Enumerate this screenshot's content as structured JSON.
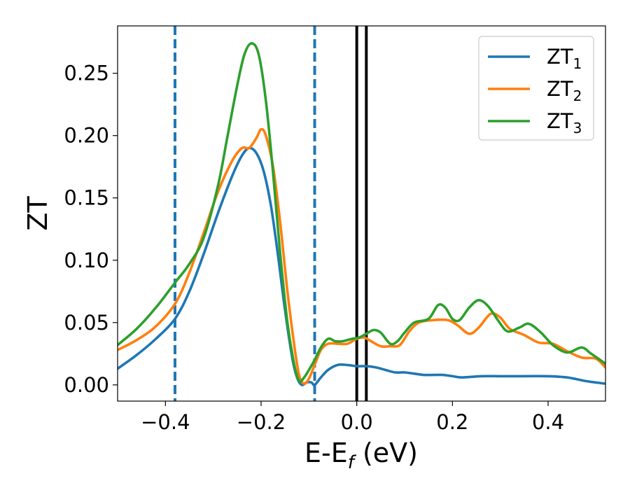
{
  "chart_data": {
    "type": "line",
    "title": "",
    "xlabel": {
      "main": "E-E",
      "sub": "f",
      "suffix": " (eV)"
    },
    "ylabel": "ZT",
    "xlim": [
      -0.5,
      0.52
    ],
    "ylim": [
      -0.013,
      0.288
    ],
    "xticks": [
      -0.4,
      -0.2,
      0.0,
      0.2,
      0.4
    ],
    "xtick_labels": [
      "−0.4",
      "−0.2",
      "0.0",
      "0.2",
      "0.4"
    ],
    "yticks": [
      0.0,
      0.05,
      0.1,
      0.15,
      0.2,
      0.25
    ],
    "ytick_labels": [
      "0.00",
      "0.05",
      "0.10",
      "0.15",
      "0.20",
      "0.25"
    ],
    "grid": false,
    "legend_position": "top-right",
    "vlines": [
      {
        "x": -0.38,
        "style": "dashed",
        "color": "#1f77b4"
      },
      {
        "x": -0.088,
        "style": "dashed",
        "color": "#1f77b4"
      },
      {
        "x": 0.0,
        "style": "solid",
        "color": "#000000"
      },
      {
        "x": 0.02,
        "style": "solid",
        "color": "#000000"
      }
    ],
    "series": [
      {
        "name": "ZT",
        "sub": "1",
        "color": "#1f77b4",
        "points": [
          [
            -0.5,
            0.013
          ],
          [
            -0.46,
            0.024
          ],
          [
            -0.42,
            0.037
          ],
          [
            -0.38,
            0.053
          ],
          [
            -0.35,
            0.075
          ],
          [
            -0.32,
            0.105
          ],
          [
            -0.29,
            0.138
          ],
          [
            -0.26,
            0.168
          ],
          [
            -0.24,
            0.184
          ],
          [
            -0.225,
            0.19
          ],
          [
            -0.21,
            0.186
          ],
          [
            -0.195,
            0.172
          ],
          [
            -0.18,
            0.145
          ],
          [
            -0.165,
            0.105
          ],
          [
            -0.15,
            0.06
          ],
          [
            -0.135,
            0.022
          ],
          [
            -0.125,
            0.006
          ],
          [
            -0.115,
            0.0
          ],
          [
            -0.105,
            0.002
          ],
          [
            -0.095,
            0.002
          ],
          [
            -0.088,
            0.0
          ],
          [
            -0.075,
            0.006
          ],
          [
            -0.06,
            0.012
          ],
          [
            -0.04,
            0.016
          ],
          [
            -0.02,
            0.016
          ],
          [
            0.0,
            0.015
          ],
          [
            0.02,
            0.015
          ],
          [
            0.04,
            0.014
          ],
          [
            0.06,
            0.012
          ],
          [
            0.08,
            0.01
          ],
          [
            0.1,
            0.01
          ],
          [
            0.12,
            0.009
          ],
          [
            0.14,
            0.008
          ],
          [
            0.16,
            0.008
          ],
          [
            0.18,
            0.008
          ],
          [
            0.2,
            0.007
          ],
          [
            0.22,
            0.006
          ],
          [
            0.26,
            0.007
          ],
          [
            0.3,
            0.007
          ],
          [
            0.35,
            0.007
          ],
          [
            0.4,
            0.007
          ],
          [
            0.44,
            0.006
          ],
          [
            0.48,
            0.003
          ],
          [
            0.52,
            0.001
          ]
        ]
      },
      {
        "name": "ZT",
        "sub": "2",
        "color": "#ff7f0e",
        "points": [
          [
            -0.5,
            0.028
          ],
          [
            -0.46,
            0.036
          ],
          [
            -0.42,
            0.047
          ],
          [
            -0.38,
            0.065
          ],
          [
            -0.35,
            0.09
          ],
          [
            -0.32,
            0.122
          ],
          [
            -0.29,
            0.155
          ],
          [
            -0.26,
            0.18
          ],
          [
            -0.24,
            0.19
          ],
          [
            -0.225,
            0.19
          ],
          [
            -0.21,
            0.198
          ],
          [
            -0.2,
            0.205
          ],
          [
            -0.19,
            0.2
          ],
          [
            -0.175,
            0.175
          ],
          [
            -0.16,
            0.13
          ],
          [
            -0.145,
            0.075
          ],
          [
            -0.13,
            0.03
          ],
          [
            -0.12,
            0.007
          ],
          [
            -0.11,
            0.001
          ],
          [
            -0.1,
            0.005
          ],
          [
            -0.088,
            0.016
          ],
          [
            -0.075,
            0.028
          ],
          [
            -0.06,
            0.033
          ],
          [
            -0.04,
            0.033
          ],
          [
            -0.02,
            0.033
          ],
          [
            0.0,
            0.037
          ],
          [
            0.015,
            0.038
          ],
          [
            0.03,
            0.035
          ],
          [
            0.05,
            0.031
          ],
          [
            0.07,
            0.031
          ],
          [
            0.09,
            0.032
          ],
          [
            0.11,
            0.043
          ],
          [
            0.13,
            0.05
          ],
          [
            0.16,
            0.052
          ],
          [
            0.19,
            0.052
          ],
          [
            0.21,
            0.048
          ],
          [
            0.235,
            0.041
          ],
          [
            0.255,
            0.046
          ],
          [
            0.28,
            0.057
          ],
          [
            0.3,
            0.054
          ],
          [
            0.32,
            0.045
          ],
          [
            0.35,
            0.04
          ],
          [
            0.38,
            0.034
          ],
          [
            0.41,
            0.033
          ],
          [
            0.44,
            0.027
          ],
          [
            0.47,
            0.022
          ],
          [
            0.5,
            0.021
          ],
          [
            0.52,
            0.014
          ]
        ]
      },
      {
        "name": "ZT",
        "sub": "3",
        "color": "#2ca02c",
        "points": [
          [
            -0.5,
            0.032
          ],
          [
            -0.46,
            0.045
          ],
          [
            -0.42,
            0.062
          ],
          [
            -0.38,
            0.082
          ],
          [
            -0.35,
            0.097
          ],
          [
            -0.32,
            0.118
          ],
          [
            -0.29,
            0.16
          ],
          [
            -0.27,
            0.2
          ],
          [
            -0.25,
            0.24
          ],
          [
            -0.235,
            0.265
          ],
          [
            -0.22,
            0.274
          ],
          [
            -0.205,
            0.265
          ],
          [
            -0.19,
            0.228
          ],
          [
            -0.175,
            0.17
          ],
          [
            -0.16,
            0.105
          ],
          [
            -0.145,
            0.05
          ],
          [
            -0.13,
            0.015
          ],
          [
            -0.12,
            0.003
          ],
          [
            -0.11,
            0.006
          ],
          [
            -0.1,
            0.012
          ],
          [
            -0.088,
            0.02
          ],
          [
            -0.075,
            0.03
          ],
          [
            -0.06,
            0.037
          ],
          [
            -0.045,
            0.035
          ],
          [
            -0.03,
            0.035
          ],
          [
            -0.01,
            0.037
          ],
          [
            0.005,
            0.038
          ],
          [
            0.02,
            0.041
          ],
          [
            0.035,
            0.044
          ],
          [
            0.05,
            0.042
          ],
          [
            0.07,
            0.033
          ],
          [
            0.085,
            0.035
          ],
          [
            0.1,
            0.042
          ],
          [
            0.12,
            0.05
          ],
          [
            0.15,
            0.053
          ],
          [
            0.17,
            0.064
          ],
          [
            0.185,
            0.062
          ],
          [
            0.2,
            0.053
          ],
          [
            0.215,
            0.052
          ],
          [
            0.235,
            0.062
          ],
          [
            0.255,
            0.068
          ],
          [
            0.275,
            0.063
          ],
          [
            0.295,
            0.052
          ],
          [
            0.315,
            0.043
          ],
          [
            0.34,
            0.046
          ],
          [
            0.36,
            0.049
          ],
          [
            0.385,
            0.042
          ],
          [
            0.41,
            0.032
          ],
          [
            0.44,
            0.026
          ],
          [
            0.47,
            0.03
          ],
          [
            0.49,
            0.025
          ],
          [
            0.52,
            0.017
          ]
        ]
      }
    ]
  }
}
